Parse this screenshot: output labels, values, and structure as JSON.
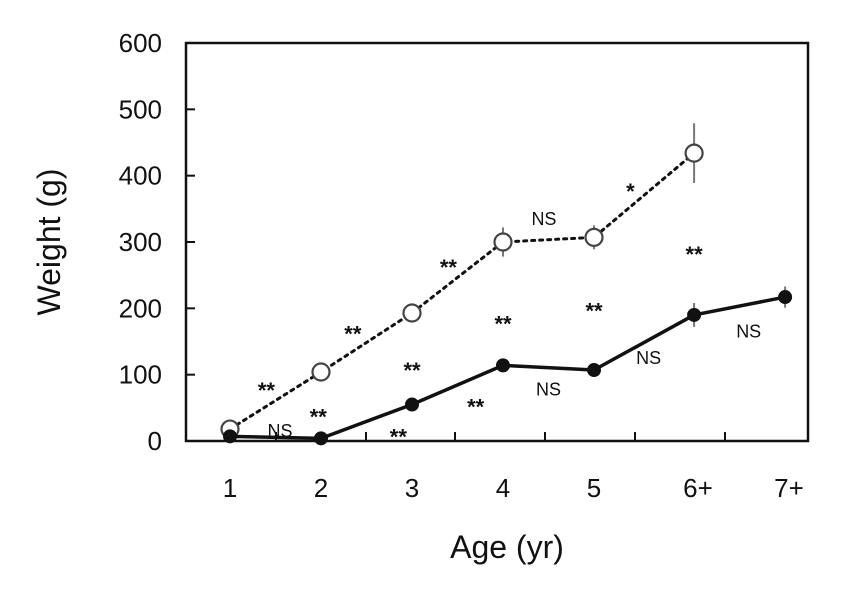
{
  "chart_data": {
    "type": "line",
    "xlabel": "Age (yr)",
    "ylabel": "Weight (g)",
    "ylim": [
      0,
      600
    ],
    "yticks": [
      0,
      100,
      200,
      300,
      400,
      500,
      600
    ],
    "xticks": [
      "1",
      "2",
      "3",
      "4",
      "5",
      "6+",
      "7+"
    ],
    "grid": false,
    "legend": "none",
    "series": [
      {
        "style": "dotted",
        "marker": "open-circle",
        "color": "#111111",
        "x": [
          1,
          2,
          3,
          4,
          5,
          6.1
        ],
        "values": [
          18,
          104,
          193,
          300,
          307,
          434
        ],
        "errors": [
          0,
          0,
          8,
          22,
          18,
          45
        ]
      },
      {
        "style": "solid",
        "marker": "filled-circle",
        "color": "#111111",
        "x": [
          1,
          2,
          3,
          4,
          5,
          6.1,
          7.1
        ],
        "values": [
          7,
          4,
          55,
          114,
          107,
          190,
          217
        ],
        "errors": [
          0,
          0,
          5,
          6,
          5,
          18,
          16
        ]
      }
    ],
    "annotations": [
      {
        "text": "**",
        "x": 1.4,
        "y": 80
      },
      {
        "text": "**",
        "x": 2.35,
        "y": 165
      },
      {
        "text": "**",
        "x": 3.4,
        "y": 265
      },
      {
        "text": "NS",
        "x": 4.45,
        "y": 335
      },
      {
        "text": "*",
        "x": 5.4,
        "y": 380
      },
      {
        "text": "NS",
        "x": 1.55,
        "y": 15
      },
      {
        "text": "**",
        "x": 1.97,
        "y": 40
      },
      {
        "text": "**",
        "x": 2.85,
        "y": 10
      },
      {
        "text": "**",
        "x": 3.0,
        "y": 110
      },
      {
        "text": "**",
        "x": 3.7,
        "y": 55
      },
      {
        "text": "**",
        "x": 4.0,
        "y": 180
      },
      {
        "text": "NS",
        "x": 4.5,
        "y": 78
      },
      {
        "text": "**",
        "x": 5.0,
        "y": 200
      },
      {
        "text": "NS",
        "x": 5.6,
        "y": 125
      },
      {
        "text": "**",
        "x": 6.1,
        "y": 285
      },
      {
        "text": "NS",
        "x": 6.7,
        "y": 165
      }
    ]
  }
}
